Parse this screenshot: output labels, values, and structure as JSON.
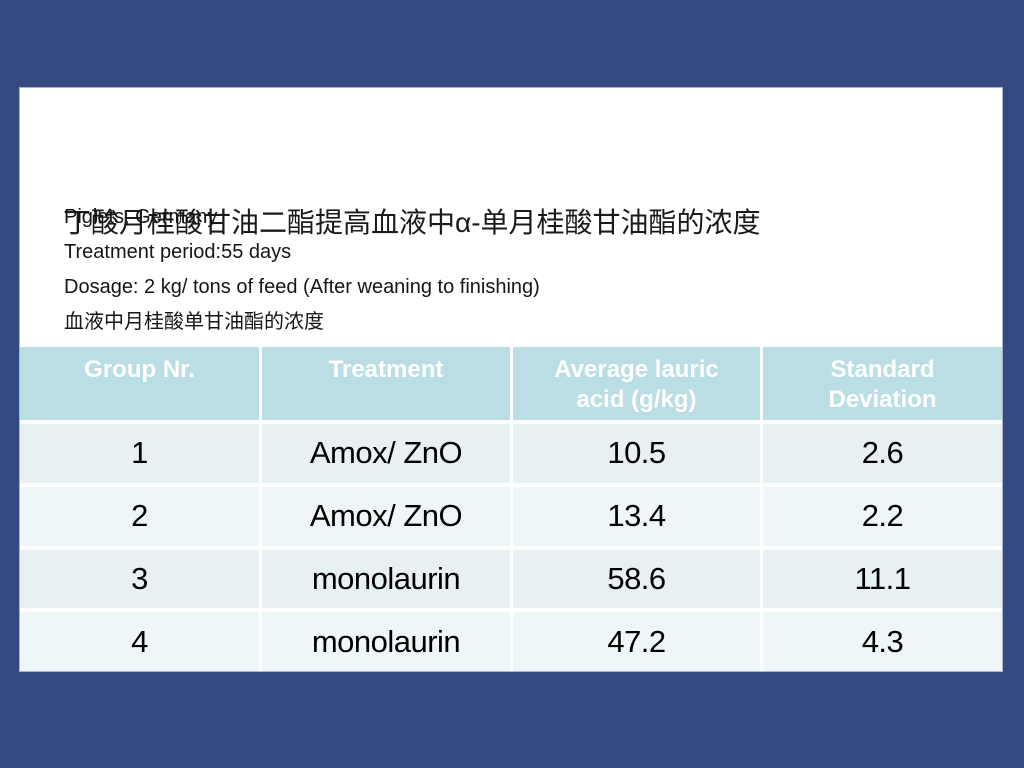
{
  "slide": {
    "title": "丁酸月桂酸甘油二酯提高血液中α-单月桂酸甘油酯的浓度",
    "body_lines": [
      "Piglets, Germany",
      "Treatment period:55 days",
      "Dosage: 2 kg/ tons of feed (After weaning to finishing)",
      "血液中月桂酸单甘油酯的浓度"
    ]
  },
  "table": {
    "headers": [
      "Group Nr.",
      "Treatment",
      "Average lauric acid (g/kg)",
      "Standard Deviation"
    ],
    "rows": [
      [
        "1",
        "Amox/ ZnO",
        "10.5",
        "2.6"
      ],
      [
        "2",
        "Amox/ ZnO",
        "13.4",
        "2.2"
      ],
      [
        "3",
        "monolaurin",
        "58.6",
        "11.1"
      ],
      [
        "4",
        "monolaurin",
        "47.2",
        "4.3"
      ]
    ]
  },
  "colors": {
    "background": "#344a80",
    "card": "#ffffff",
    "header_bg": "#badee3",
    "header_text": "#ffffff",
    "row_odd": "#e7f0f3",
    "row_even": "#eef6f8",
    "cell_text": "#000000"
  }
}
